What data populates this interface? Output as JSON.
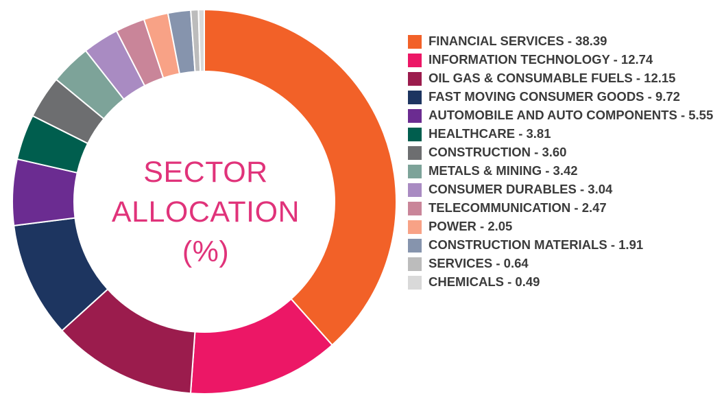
{
  "chart_data": {
    "type": "pie",
    "style": "donut",
    "title_lines": [
      "SECTOR",
      "ALLOCATION",
      "(%)"
    ],
    "legend_position": "right",
    "slices": [
      {
        "label": "FINANCIAL SERVICES",
        "value": 38.39,
        "value_text": "38.39",
        "legend_text": "FINANCIAL SERVICES - 38.39",
        "color": "#f26128"
      },
      {
        "label": "INFORMATION TECHNOLOGY",
        "value": 12.74,
        "value_text": "12.74",
        "legend_text": "INFORMATION TECHNOLOGY - 12.74",
        "color": "#ec1766"
      },
      {
        "label": "OIL GAS & CONSUMABLE FUELS",
        "value": 12.15,
        "value_text": "12.15",
        "legend_text": "OIL GAS & CONSUMABLE FUELS - 12.15",
        "color": "#9b1c4d"
      },
      {
        "label": "FAST MOVING CONSUMER GOODS",
        "value": 9.72,
        "value_text": "9.72",
        "legend_text": "FAST MOVING CONSUMER GOODS - 9.72",
        "color": "#1d3560"
      },
      {
        "label": "AUTOMOBILE AND AUTO COMPONENTS",
        "value": 5.55,
        "value_text": "5.55",
        "legend_text": "AUTOMOBILE AND AUTO COMPONENTS - 5.55",
        "color": "#6b2c91"
      },
      {
        "label": "HEALTHCARE",
        "value": 3.81,
        "value_text": "3.81",
        "legend_text": "HEALTHCARE - 3.81",
        "color": "#005e4e"
      },
      {
        "label": "CONSTRUCTION",
        "value": 3.6,
        "value_text": "3.60",
        "legend_text": "CONSTRUCTION - 3.60",
        "color": "#6d6e70"
      },
      {
        "label": "METALS & MINING",
        "value": 3.42,
        "value_text": "3.42",
        "legend_text": "METALS & MINING - 3.42",
        "color": "#7da399"
      },
      {
        "label": "CONSUMER DURABLES",
        "value": 3.04,
        "value_text": "3.04",
        "legend_text": "CONSUMER DURABLES - 3.04",
        "color": "#a98bc2"
      },
      {
        "label": "TELECOMMUNICATION",
        "value": 2.47,
        "value_text": "2.47",
        "legend_text": "TELECOMMUNICATION - 2.47",
        "color": "#c98599"
      },
      {
        "label": "POWER",
        "value": 2.05,
        "value_text": "2.05",
        "legend_text": "POWER - 2.05",
        "color": "#f8a286"
      },
      {
        "label": "CONSTRUCTION MATERIALS",
        "value": 1.91,
        "value_text": "1.91",
        "legend_text": "CONSTRUCTION MATERIALS - 1.91",
        "color": "#8694ad"
      },
      {
        "label": "SERVICES",
        "value": 0.64,
        "value_text": "0.64",
        "legend_text": "SERVICES - 0.64",
        "color": "#bcbcbc"
      },
      {
        "label": "CHEMICALS",
        "value": 0.49,
        "value_text": "0.49",
        "legend_text": "CHEMICALS - 0.49",
        "color": "#d9d9d9"
      }
    ]
  },
  "colors": {
    "title": "#e0337a",
    "legend_text": "#3b3b3b",
    "background": "#ffffff"
  }
}
